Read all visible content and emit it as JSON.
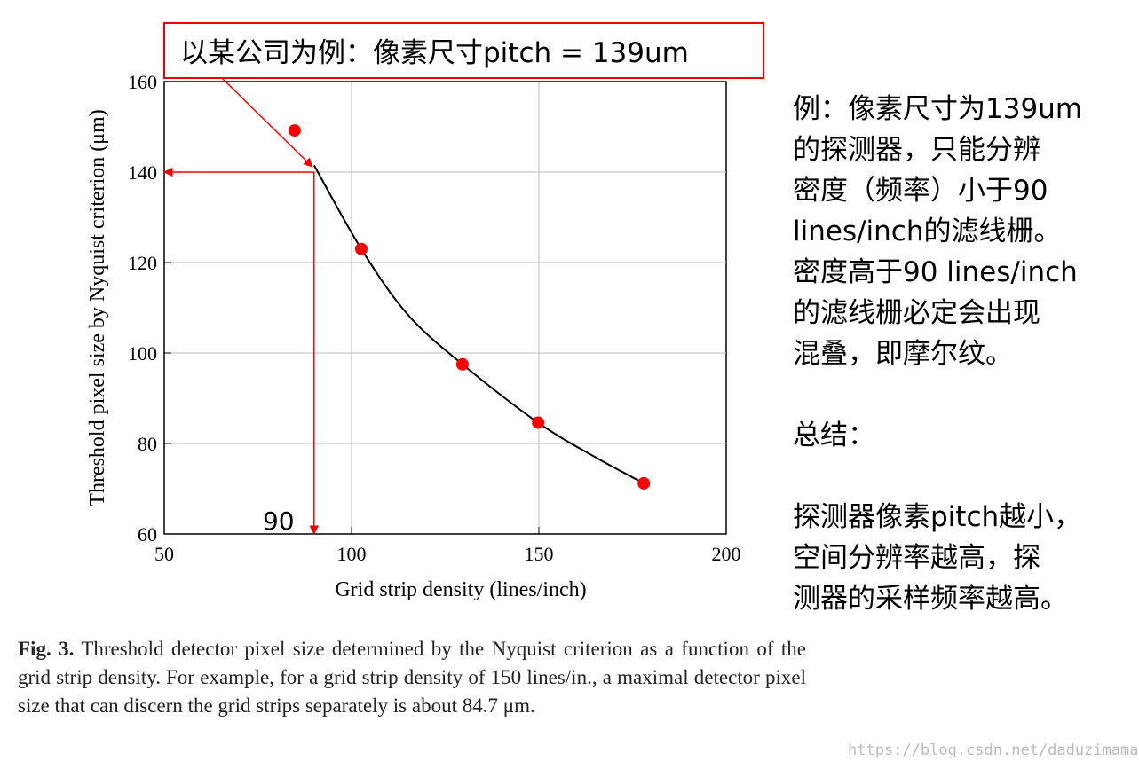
{
  "chart_data": {
    "type": "scatter",
    "title": "以某公司为例：像素尺寸pitch = 139um",
    "x_label": "Grid strip density (lines/inch)",
    "y_label": "Threshold pixel size by Nyquist criterion (μm)",
    "x": [
      84.8,
      102.6,
      129.6,
      149.8,
      178
    ],
    "series": [
      {
        "color": "#ff0000",
        "values": [
          149.2,
          123,
          97.5,
          84.6,
          71.2
        ]
      }
    ],
    "fit": {
      "color": "#000000",
      "x": [
        90,
        102.6,
        115,
        129.6,
        149.8,
        165,
        178
      ],
      "values": [
        141.5,
        123,
        108.5,
        97.5,
        84.6,
        77,
        71.2
      ]
    },
    "marker": {
      "x": 90,
      "y": 140,
      "color": "#ff0000",
      "label": "90"
    },
    "xlim": [
      50,
      200
    ],
    "ylim": [
      60,
      160
    ],
    "xticks": [
      50,
      100,
      150,
      200
    ],
    "yticks": [
      60,
      80,
      100,
      120,
      140,
      160
    ],
    "grid": true
  },
  "note": {
    "lines": [
      "例：像素尺寸为139um",
      "的探测器，只能分辨",
      "密度（频率）小于90",
      "lines/inch的滤线栅。",
      "密度高于90 lines/inch",
      "的滤线栅必定会出现",
      "混叠，即摩尔纹。",
      "",
      "总结：",
      "",
      "探测器像素pitch越小，",
      "空间分辨率越高，探",
      "测器的采样频率越高。"
    ]
  },
  "caption": {
    "label": "Fig. 3.",
    "text": "Threshold detector pixel size determined by the Nyquist criterion as a function of the grid strip density. For example, for a grid strip density of 150 lines/in., a maximal detector pixel size that can discern the grid strips separately is about 84.7 μm."
  },
  "watermark": "https://blog.csdn.net/daduzimama"
}
